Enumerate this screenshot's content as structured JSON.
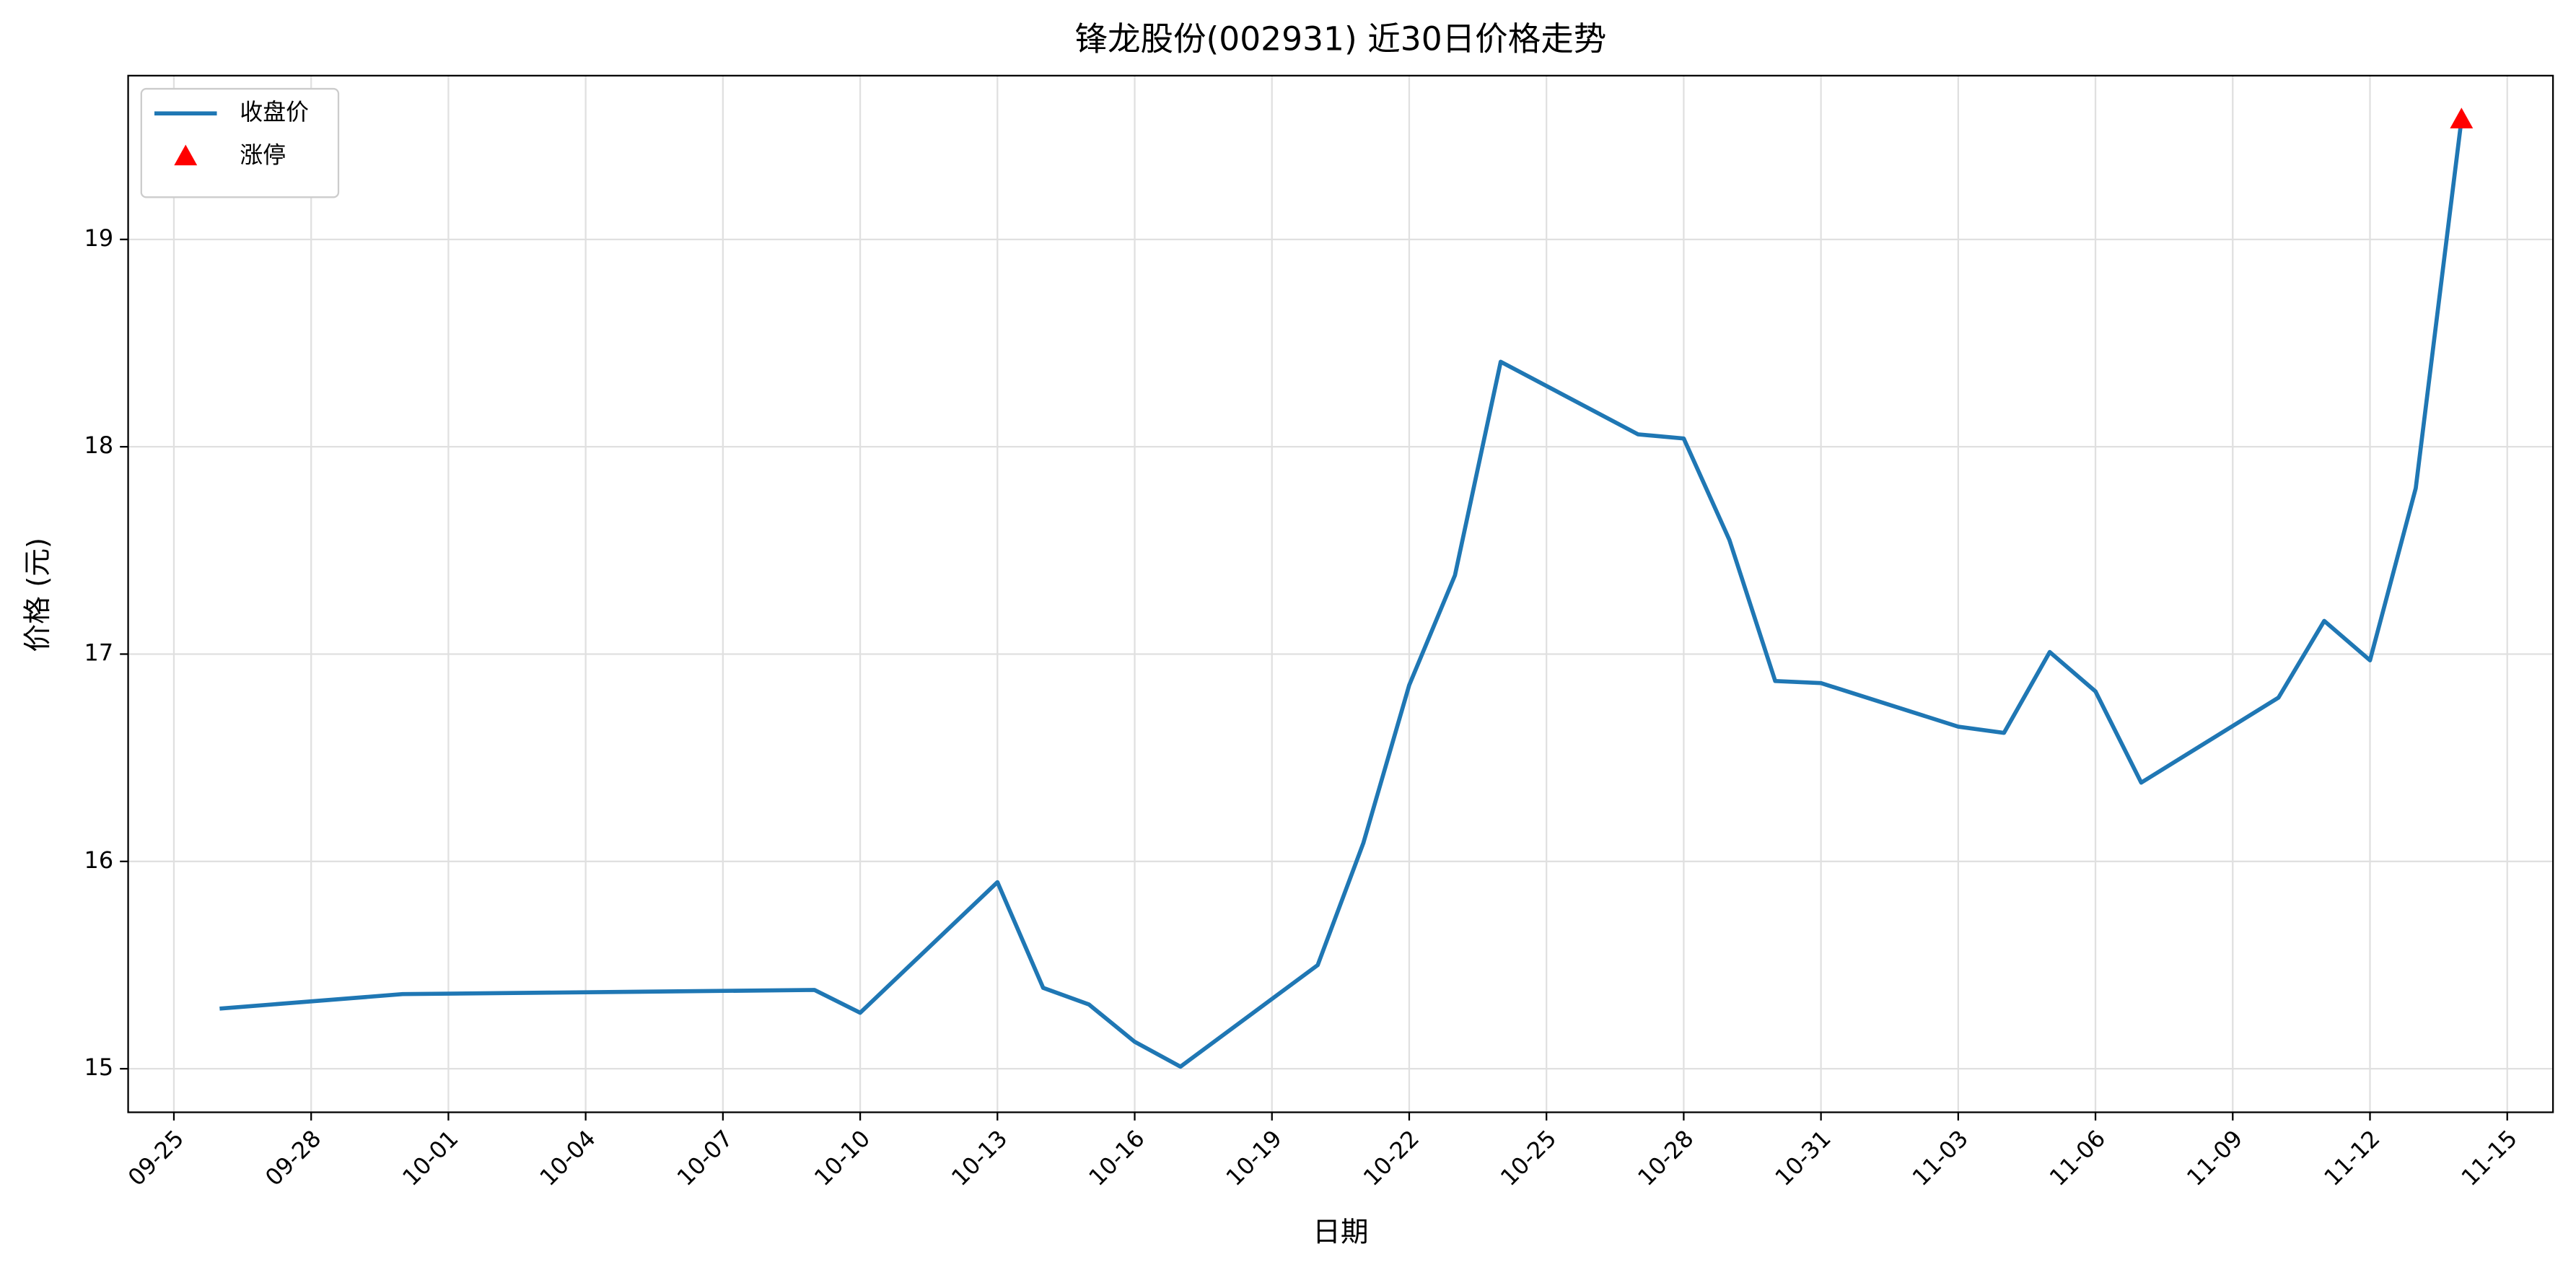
{
  "chart_data": {
    "type": "line",
    "title": "锋龙股份(002931) 近30日价格走势",
    "xlabel": "日期",
    "ylabel": "价格 (元)",
    "x": [
      "09-26",
      "09-30",
      "10-09",
      "10-10",
      "10-13",
      "10-14",
      "10-15",
      "10-16",
      "10-17",
      "10-20",
      "10-21",
      "10-22",
      "10-23",
      "10-24",
      "10-27",
      "10-28",
      "10-29",
      "10-30",
      "10-31",
      "11-03",
      "11-04",
      "11-05",
      "11-06",
      "11-07",
      "11-10",
      "11-11",
      "11-12",
      "11-13",
      "11-14"
    ],
    "series": [
      {
        "name": "收盘价",
        "color": "#1f77b4",
        "mode": "line",
        "values": [
          15.29,
          15.36,
          15.38,
          15.27,
          15.9,
          15.39,
          15.31,
          15.13,
          15.01,
          15.5,
          16.09,
          16.85,
          17.38,
          18.41,
          18.06,
          18.04,
          17.55,
          16.87,
          16.86,
          16.65,
          16.62,
          17.01,
          16.82,
          16.38,
          16.79,
          17.16,
          16.97,
          17.8,
          19.58
        ]
      },
      {
        "name": "涨停",
        "color": "#ff0000",
        "mode": "marker",
        "marker": "triangle",
        "x": [
          "11-14"
        ],
        "values": [
          19.58
        ]
      }
    ],
    "xlim": [
      "09-24",
      "11-16"
    ],
    "xticks": [
      "09-25",
      "09-28",
      "10-01",
      "10-04",
      "10-07",
      "10-10",
      "10-13",
      "10-16",
      "10-19",
      "10-22",
      "10-25",
      "10-28",
      "10-31",
      "11-03",
      "11-06",
      "11-09",
      "11-12",
      "11-15"
    ],
    "ylim": [
      14.79,
      19.79
    ],
    "yticks": [
      15,
      16,
      17,
      18,
      19
    ],
    "grid": true,
    "legend": "upper left"
  }
}
